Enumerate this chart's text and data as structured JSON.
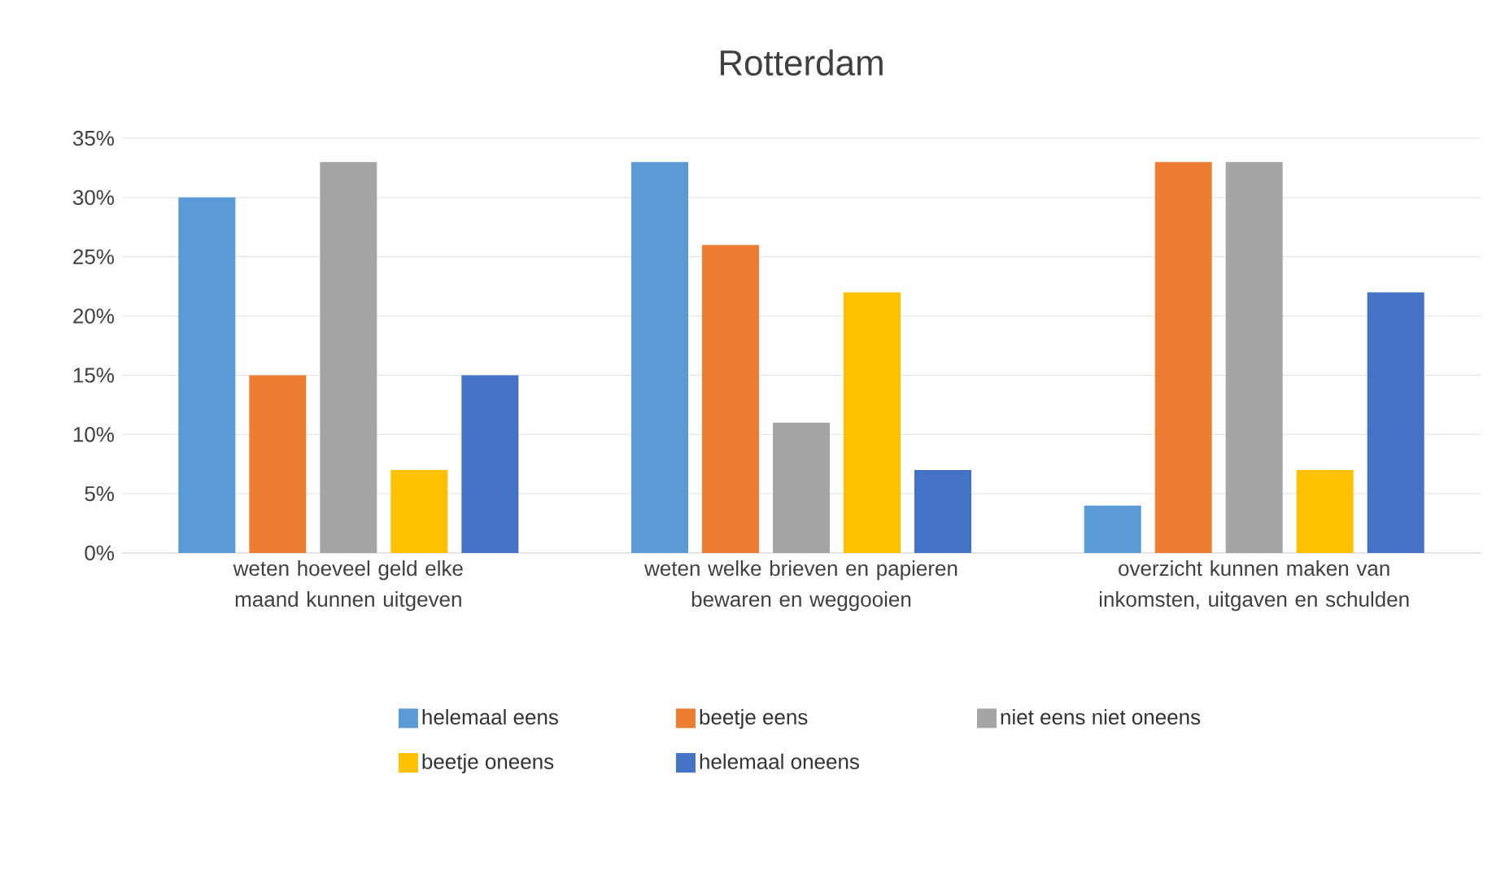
{
  "chart_data": {
    "type": "bar",
    "title": "Rotterdam",
    "categories": [
      "weten hoeveel geld elke maand kunnen uitgeven",
      "weten welke brieven en papieren bewaren en weggooien",
      "overzicht kunnen maken van inkomsten, uitgaven en schulden"
    ],
    "series": [
      {
        "name": "helemaal eens",
        "color": "#5b9bd5",
        "values": [
          30,
          33,
          4
        ]
      },
      {
        "name": "beetje eens",
        "color": "#ed7d31",
        "values": [
          15,
          26,
          33
        ]
      },
      {
        "name": "niet eens niet oneens",
        "color": "#a5a5a5",
        "values": [
          33,
          11,
          33
        ]
      },
      {
        "name": "beetje oneens",
        "color": "#ffc000",
        "values": [
          7,
          22,
          7
        ]
      },
      {
        "name": "helemaal oneens",
        "color": "#4472c4",
        "values": [
          15,
          7,
          22
        ]
      }
    ],
    "ylim": [
      0,
      35
    ],
    "yticks": [
      {
        "value": 0,
        "label": "0%"
      },
      {
        "value": 5,
        "label": "5%"
      },
      {
        "value": 10,
        "label": "10%"
      },
      {
        "value": 15,
        "label": "15%"
      },
      {
        "value": 20,
        "label": "20%"
      },
      {
        "value": 25,
        "label": "25%"
      },
      {
        "value": 30,
        "label": "30%"
      },
      {
        "value": 35,
        "label": "35%"
      }
    ],
    "grid": "y",
    "legend": "bottom"
  }
}
